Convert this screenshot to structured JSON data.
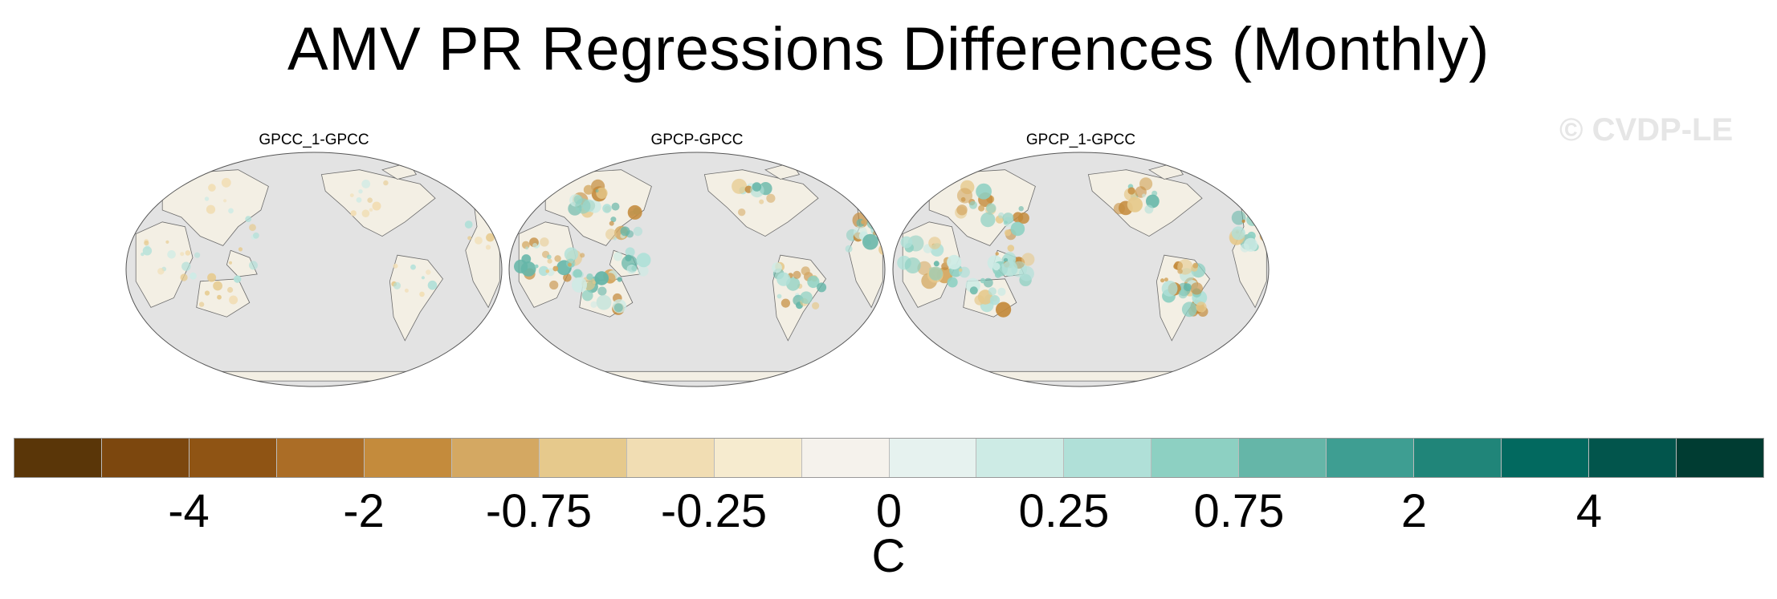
{
  "title": "AMV PR Regressions Differences (Monthly)",
  "watermark": "© CVDP-LE",
  "panels": [
    {
      "label": "GPCC_1-GPCC"
    },
    {
      "label": "GPCP-GPCC"
    },
    {
      "label": "GPCP_1-GPCC"
    }
  ],
  "colorbar": {
    "unit": "C",
    "colors": [
      "#5a3608",
      "#7c470e",
      "#8f5414",
      "#ab6d26",
      "#c48b3c",
      "#d4a862",
      "#e6c98c",
      "#f1ddb3",
      "#f6ebcf",
      "#f5f2ec",
      "#e6f2ef",
      "#cdebe5",
      "#b0e0d8",
      "#8dd0c2",
      "#65b6a8",
      "#3e9e92",
      "#208579",
      "#02695f",
      "#02554c",
      "#003c32"
    ],
    "tick_labels": [
      "-4",
      "-2",
      "-0.75",
      "-0.25",
      "0",
      "0.25",
      "0.75",
      "2",
      "4"
    ],
    "tick_boundary_index": [
      2,
      4,
      6,
      8,
      10,
      12,
      14,
      16,
      18
    ]
  }
}
